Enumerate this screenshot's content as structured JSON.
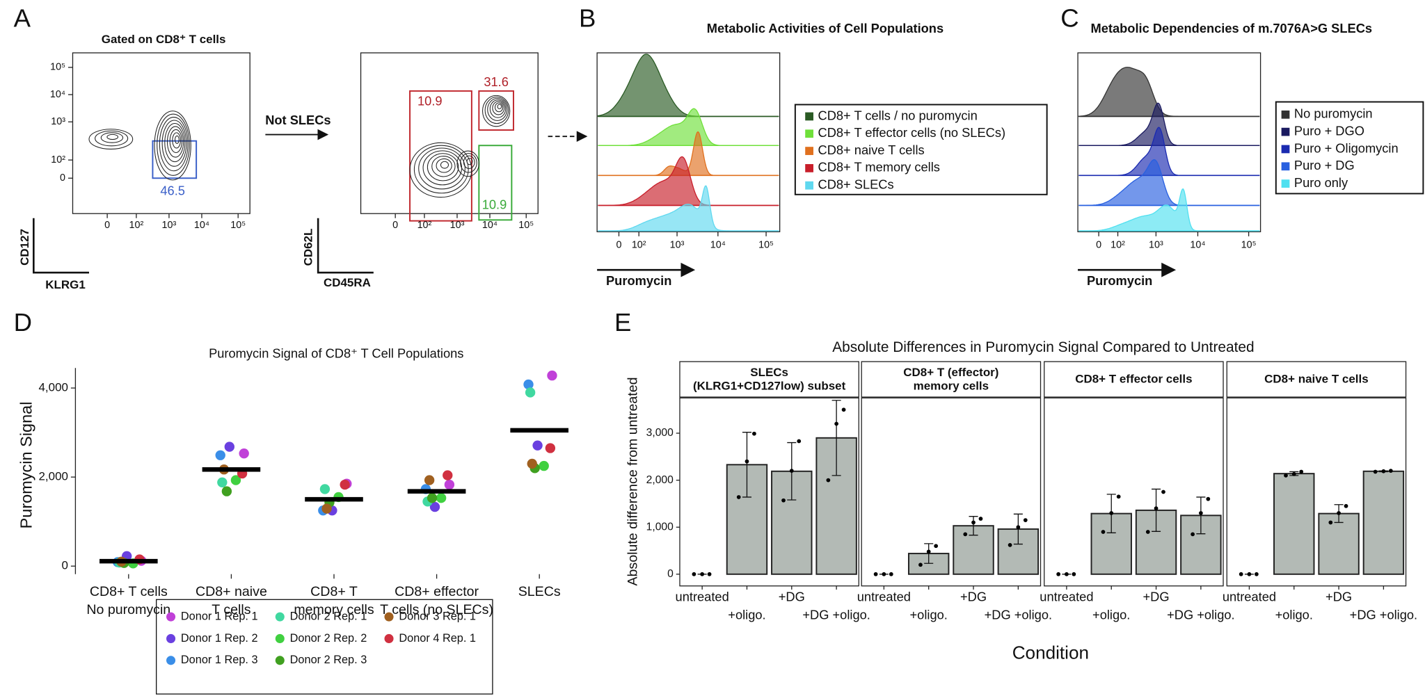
{
  "panel_labels": [
    "A",
    "B",
    "C",
    "D",
    "E"
  ],
  "panel_a": {
    "title": "Gated on CD8⁺ T cells",
    "arrow_label": "Not SLECs",
    "plot1": {
      "x_label": "KLRG1",
      "y_label": "CD127",
      "xtick_labels": [
        "0",
        "10²",
        "10³",
        "10⁴",
        "10⁵"
      ],
      "ytick_labels": [
        "10⁵",
        "10⁴",
        "10³",
        "10²",
        "0"
      ],
      "gates": [
        46.5
      ]
    },
    "plot2": {
      "x_label": "CD45RA",
      "y_label": "CD62L",
      "xtick_labels": [
        "0",
        "10²",
        "10³",
        "10⁴",
        "10⁵"
      ],
      "gates": [
        10.9,
        31.6,
        10.9
      ]
    }
  },
  "panel_b": {
    "title": "Metabolic Activities of Cell Populations",
    "x_label": "Puromycin",
    "xtick_labels": [
      "0",
      "10²",
      "10³",
      "10⁴",
      "10⁵"
    ],
    "legend": [
      {
        "name": "CD8+ T cells / no puromycin",
        "color": "#2a5a24"
      },
      {
        "name": "CD8+ T effector cells (no SLECs)",
        "color": "#6fe03a"
      },
      {
        "name": "CD8+ naive T cells",
        "color": "#e0701e"
      },
      {
        "name": "CD8+ T memory cells",
        "color": "#c81e2a"
      },
      {
        "name": "CD8+ SLECs",
        "color": "#5fd8ef"
      }
    ]
  },
  "panel_c": {
    "title": "Metabolic Dependencies of m.7076A>G SLECs",
    "x_label": "Puromycin",
    "xtick_labels": [
      "0",
      "10²",
      "10³",
      "10⁴",
      "10⁵"
    ],
    "legend": [
      {
        "name": "No puromycin",
        "color": "#333333"
      },
      {
        "name": "Puro + DGO",
        "color": "#1a1a60"
      },
      {
        "name": "Puro + Oligomycin",
        "color": "#1a2ab0"
      },
      {
        "name": "Puro + DG",
        "color": "#2860e0"
      },
      {
        "name": "Puro only",
        "color": "#50e0f0"
      }
    ]
  },
  "chart_data": [
    {
      "type": "strip",
      "title": "Puromycin Signal of CD8⁺ T Cell Populations",
      "y_label": "Puromycin Signal",
      "categories": [
        [
          "CD8+ T cells",
          "No puromycin"
        ],
        [
          "CD8+ naive",
          "T cells"
        ],
        [
          "CD8+ T",
          "memory cells"
        ],
        [
          "CD8+ effector",
          "T cells (no SLECs)"
        ],
        [
          "SLECs"
        ]
      ],
      "ylim": [
        -180,
        4450
      ],
      "yticks": [
        0,
        {
          "value": 2000,
          "label": "2,000"
        },
        {
          "value": 4000,
          "label": "4,000"
        }
      ],
      "means": [
        110,
        2170,
        1500,
        1680,
        3050
      ],
      "series": [
        {
          "name": "Donor 1 Rep. 1",
          "color": "#c040d8",
          "values": [
            120,
            2530,
            1850,
            1830,
            4280
          ]
        },
        {
          "name": "Donor 1 Rep. 2",
          "color": "#6a40e0",
          "values": [
            225,
            2680,
            1250,
            1330,
            2710
          ]
        },
        {
          "name": "Donor 1 Rep. 3",
          "color": "#3a8ee8",
          "values": [
            90,
            2490,
            1250,
            1730,
            4080
          ]
        },
        {
          "name": "Donor 2 Rep. 1",
          "color": "#40d8a0",
          "values": [
            80,
            1880,
            1730,
            1450,
            3900
          ]
        },
        {
          "name": "Donor 2 Rep. 2",
          "color": "#40d040",
          "values": [
            60,
            1930,
            1550,
            1530,
            2250
          ]
        },
        {
          "name": "Donor 2 Rep. 3",
          "color": "#40a020",
          "values": [
            70,
            1680,
            1430,
            1530,
            2200
          ]
        },
        {
          "name": "Donor 3 Rep. 1",
          "color": "#a06020",
          "values": [
            100,
            2170,
            1290,
            1930,
            2300
          ]
        },
        {
          "name": "Donor 4 Rep. 1",
          "color": "#d03040",
          "values": [
            150,
            2080,
            1830,
            2040,
            2650
          ]
        }
      ]
    },
    {
      "type": "bar",
      "title": "Absolute Differences in Puromycin Signal Compared to Untreated",
      "x_label": "Condition",
      "y_label": "Absolute difference from untreated",
      "categories": [
        "untreated",
        "+oligo.",
        "+DG",
        "+DG +oligo."
      ],
      "color": "#b3bab5",
      "ylim": [
        -250,
        3750
      ],
      "yticks": [
        0,
        {
          "value": 1000,
          "label": "1,000"
        },
        {
          "value": 2000,
          "label": "2,000"
        },
        {
          "value": 3000,
          "label": "3,000"
        }
      ],
      "facets": [
        {
          "title": [
            "SLECs",
            "(KLRG1+CD127low) subset"
          ],
          "values": [
            0,
            2330,
            2190,
            2900
          ],
          "errors": [
            0,
            690,
            610,
            800
          ],
          "points": [
            [
              0,
              0,
              0
            ],
            [
              1640,
              2400,
              2990
            ],
            [
              1570,
              2200,
              2830
            ],
            [
              2000,
              3200,
              3500
            ]
          ]
        },
        {
          "title": [
            "CD8+ T (effector)",
            "memory cells"
          ],
          "values": [
            0,
            440,
            1030,
            960
          ],
          "errors": [
            0,
            210,
            200,
            320
          ],
          "points": [
            [
              0,
              0,
              0
            ],
            [
              200,
              480,
              600
            ],
            [
              850,
              1100,
              1180
            ],
            [
              620,
              1000,
              1150
            ]
          ]
        },
        {
          "title": [
            "CD8+ T effector cells"
          ],
          "values": [
            0,
            1290,
            1360,
            1250
          ],
          "errors": [
            0,
            410,
            450,
            390
          ],
          "points": [
            [
              0,
              0,
              0
            ],
            [
              900,
              1300,
              1650
            ],
            [
              900,
              1400,
              1750
            ],
            [
              850,
              1300,
              1600
            ]
          ]
        },
        {
          "title": [
            "CD8+ naive T cells"
          ],
          "values": [
            0,
            2140,
            1290,
            2190
          ],
          "errors": [
            0,
            40,
            190,
            10
          ],
          "points": [
            [
              0,
              0,
              0
            ],
            [
              2100,
              2130,
              2180
            ],
            [
              1100,
              1300,
              1450
            ],
            [
              2180,
              2190,
              2200
            ]
          ]
        }
      ]
    }
  ]
}
